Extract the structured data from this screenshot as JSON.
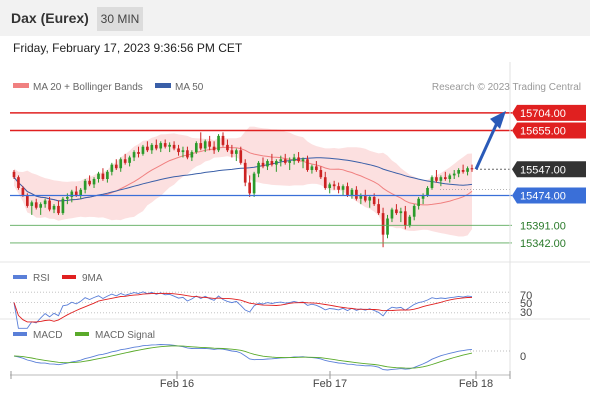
{
  "header": {
    "instrument": "Dax (Eurex)",
    "timeframe": "30 MIN",
    "datetime": "Friday, February 17, 2023 9:36:56 PM CET"
  },
  "colors": {
    "bollinger_line": "#f08080",
    "bollinger_band": "#fbd6d6",
    "ma50": "#3a5fa8",
    "resistance": "#e02020",
    "pivot": "#3a6fd8",
    "support": "#5aaa5a",
    "candle_up": "#2a9a2a",
    "candle_down": "#cc2222",
    "rsi": "#5a7fd8",
    "rsi_ma": "#e02020",
    "macd": "#5a7fd8",
    "macd_signal": "#5aaa2a",
    "arrow": "#2a5ab8",
    "current_price_bg": "#333333"
  },
  "legend": {
    "ma20_label": "MA 20 + Bollinger Bands",
    "ma50_label": "MA 50",
    "copyright": "Research © 2023 Trading Central"
  },
  "chart_data": {
    "type": "candlestick",
    "price_range": [
      15300,
      15740
    ],
    "levels": {
      "resistance": [
        15704.0,
        15655.0
      ],
      "current": 15547.0,
      "pivot": 15474.0,
      "support": [
        15391.0,
        15342.0
      ]
    },
    "level_labels": [
      "15704.00",
      "15655.00",
      "15547.00",
      "15474.00",
      "15391.00",
      "15342.00"
    ],
    "x_ticks": [
      "Feb 16",
      "Feb 17",
      "Feb 18"
    ],
    "candles": [
      [
        15540,
        15545,
        15520,
        15525
      ],
      [
        15525,
        15530,
        15490,
        15495
      ],
      [
        15495,
        15500,
        15470,
        15475
      ],
      [
        15475,
        15480,
        15440,
        15445
      ],
      [
        15445,
        15460,
        15420,
        15455
      ],
      [
        15455,
        15465,
        15435,
        15440
      ],
      [
        15440,
        15455,
        15420,
        15450
      ],
      [
        15450,
        15465,
        15440,
        15460
      ],
      [
        15460,
        15470,
        15430,
        15435
      ],
      [
        15435,
        15450,
        15425,
        15445
      ],
      [
        15445,
        15460,
        15420,
        15425
      ],
      [
        15425,
        15470,
        15420,
        15465
      ],
      [
        15465,
        15480,
        15450,
        15470
      ],
      [
        15470,
        15490,
        15455,
        15485
      ],
      [
        15485,
        15500,
        15470,
        15475
      ],
      [
        15475,
        15495,
        15465,
        15490
      ],
      [
        15490,
        15520,
        15480,
        15515
      ],
      [
        15515,
        15530,
        15500,
        15505
      ],
      [
        15505,
        15525,
        15495,
        15520
      ],
      [
        15520,
        15540,
        15510,
        15535
      ],
      [
        15535,
        15550,
        15515,
        15520
      ],
      [
        15520,
        15545,
        15510,
        15540
      ],
      [
        15540,
        15565,
        15530,
        15560
      ],
      [
        15560,
        15575,
        15545,
        15550
      ],
      [
        15550,
        15580,
        15540,
        15575
      ],
      [
        15575,
        15590,
        15560,
        15565
      ],
      [
        15565,
        15585,
        15555,
        15580
      ],
      [
        15580,
        15600,
        15570,
        15595
      ],
      [
        15595,
        15610,
        15580,
        15590
      ],
      [
        15590,
        15615,
        15585,
        15610
      ],
      [
        15610,
        15625,
        15595,
        15600
      ],
      [
        15600,
        15620,
        15590,
        15615
      ],
      [
        15615,
        15630,
        15600,
        15605
      ],
      [
        15605,
        15625,
        15595,
        15620
      ],
      [
        15620,
        15630,
        15605,
        15610
      ],
      [
        15610,
        15622,
        15595,
        15615
      ],
      [
        15615,
        15625,
        15600,
        15605
      ],
      [
        15605,
        15615,
        15585,
        15595
      ],
      [
        15595,
        15610,
        15580,
        15600
      ],
      [
        15600,
        15610,
        15575,
        15580
      ],
      [
        15580,
        15600,
        15570,
        15595
      ],
      [
        15595,
        15625,
        15590,
        15620
      ],
      [
        15620,
        15650,
        15600,
        15605
      ],
      [
        15605,
        15630,
        15595,
        15625
      ],
      [
        15625,
        15640,
        15600,
        15610
      ],
      [
        15610,
        15625,
        15590,
        15600
      ],
      [
        15600,
        15645,
        15595,
        15640
      ],
      [
        15640,
        15650,
        15610,
        15615
      ],
      [
        15615,
        15630,
        15595,
        15600
      ],
      [
        15600,
        15615,
        15580,
        15590
      ],
      [
        15590,
        15605,
        15570,
        15600
      ],
      [
        15600,
        15610,
        15560,
        15565
      ],
      [
        15565,
        15575,
        15500,
        15510
      ],
      [
        15510,
        15530,
        15470,
        15480
      ],
      [
        15480,
        15540,
        15470,
        15535
      ],
      [
        15535,
        15570,
        15525,
        15565
      ],
      [
        15565,
        15580,
        15550,
        15555
      ],
      [
        15555,
        15575,
        15545,
        15570
      ],
      [
        15570,
        15590,
        15555,
        15560
      ],
      [
        15560,
        15575,
        15540,
        15570
      ],
      [
        15570,
        15585,
        15555,
        15575
      ],
      [
        15575,
        15590,
        15560,
        15565
      ],
      [
        15565,
        15580,
        15545,
        15570
      ],
      [
        15570,
        15590,
        15560,
        15580
      ],
      [
        15580,
        15595,
        15565,
        15570
      ],
      [
        15570,
        15580,
        15550,
        15575
      ],
      [
        15575,
        15585,
        15540,
        15545
      ],
      [
        15545,
        15560,
        15535,
        15555
      ],
      [
        15555,
        15570,
        15540,
        15545
      ],
      [
        15545,
        15555,
        15520,
        15525
      ],
      [
        15525,
        15540,
        15490,
        15495
      ],
      [
        15495,
        15510,
        15480,
        15505
      ],
      [
        15505,
        15515,
        15490,
        15500
      ],
      [
        15500,
        15510,
        15480,
        15490
      ],
      [
        15490,
        15505,
        15475,
        15500
      ],
      [
        15500,
        15510,
        15470,
        15475
      ],
      [
        15475,
        15495,
        15465,
        15490
      ],
      [
        15490,
        15500,
        15460,
        15465
      ],
      [
        15465,
        15480,
        15450,
        15475
      ],
      [
        15475,
        15490,
        15455,
        15460
      ],
      [
        15460,
        15475,
        15440,
        15470
      ],
      [
        15470,
        15480,
        15445,
        15450
      ],
      [
        15450,
        15465,
        15420,
        15425
      ],
      [
        15425,
        15440,
        15330,
        15365
      ],
      [
        15365,
        15420,
        15355,
        15410
      ],
      [
        15410,
        15440,
        15400,
        15435
      ],
      [
        15435,
        15450,
        15420,
        15425
      ],
      [
        15425,
        15440,
        15400,
        15430
      ],
      [
        15430,
        15445,
        15380,
        15390
      ],
      [
        15390,
        15420,
        15385,
        15415
      ],
      [
        15415,
        15450,
        15405,
        15445
      ],
      [
        15445,
        15470,
        15435,
        15465
      ],
      [
        15465,
        15480,
        15450,
        15475
      ],
      [
        15475,
        15500,
        15470,
        15495
      ],
      [
        15495,
        15530,
        15490,
        15525
      ],
      [
        15525,
        15545,
        15510,
        15515
      ],
      [
        15515,
        15530,
        15500,
        15525
      ],
      [
        15525,
        15540,
        15515,
        15520
      ],
      [
        15520,
        15535,
        15510,
        15530
      ],
      [
        15530,
        15545,
        15520,
        15535
      ],
      [
        15535,
        15550,
        15525,
        15545
      ],
      [
        15545,
        15560,
        15535,
        15540
      ],
      [
        15540,
        15555,
        15530,
        15550
      ],
      [
        15550,
        15560,
        15540,
        15547
      ]
    ],
    "rsi": {
      "legend": [
        "RSI",
        "9MA"
      ],
      "levels": [
        70,
        50,
        30
      ],
      "level_labels": [
        "70",
        "50",
        "30"
      ],
      "range": [
        20,
        80
      ]
    },
    "macd": {
      "legend": [
        "MACD",
        "MACD Signal"
      ],
      "level_labels": [
        "0"
      ]
    }
  }
}
